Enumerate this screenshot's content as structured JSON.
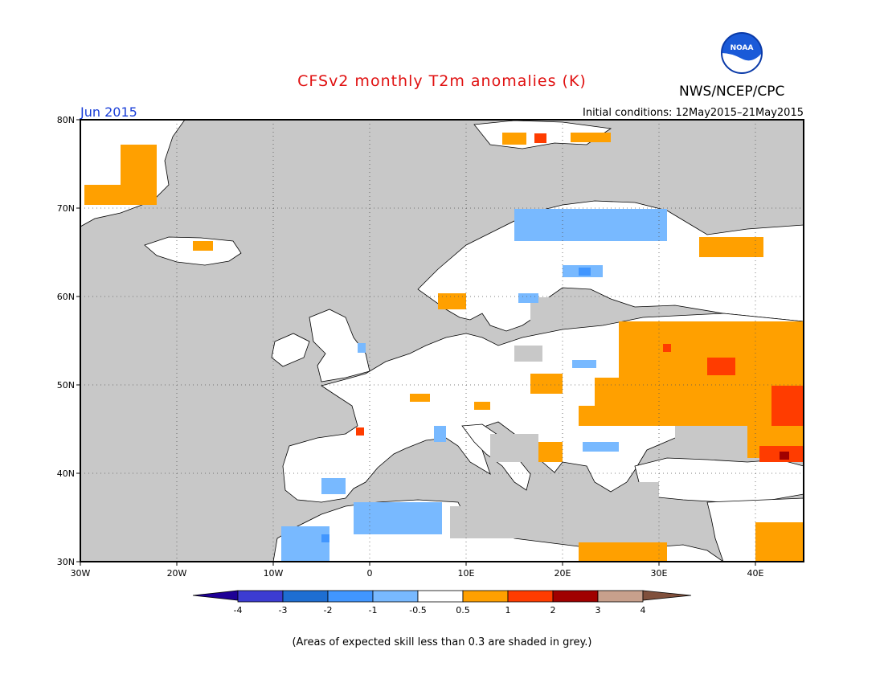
{
  "header": {
    "title": "CFSv2 monthly T2m anomalies (K)",
    "org": "NWS/NCEP/CPC",
    "logo_text": "NOAA",
    "month": "Jun 2015",
    "initial_conditions": "Initial conditions: 12May2015–21May2015"
  },
  "map": {
    "region": "Europe",
    "lon_range": [
      -30,
      45
    ],
    "lat_range": [
      30,
      80
    ],
    "lat_labels": [
      "80N",
      "70N",
      "60N",
      "50N",
      "40N",
      "30N"
    ],
    "lon_labels": [
      "30W",
      "20W",
      "10W",
      "0",
      "10E",
      "20E",
      "30E",
      "40E"
    ],
    "colors": {
      "ocean_low_skill": "#c8c8c8",
      "land_neutral": "#ffffff",
      "warm_05_1": "#ffa000",
      "warm_1_2": "#ff3c00",
      "warm_2_3": "#a00000",
      "cool_05_1": "#78b9ff",
      "cool_1_2": "#4196ff"
    }
  },
  "legend": {
    "labels": [
      "-4",
      "-3",
      "-2",
      "-1",
      "-0.5",
      "0.5",
      "1",
      "2",
      "3",
      "4"
    ],
    "colors": [
      "#1e0096",
      "#3c3cd2",
      "#1e6ed2",
      "#4196ff",
      "#78b9ff",
      "#ffffff",
      "#ffa000",
      "#ff3c00",
      "#a00000",
      "#c8a08c",
      "#80503c"
    ]
  },
  "footnote": "(Areas of expected skill less than 0.3 are shaded in grey.)"
}
